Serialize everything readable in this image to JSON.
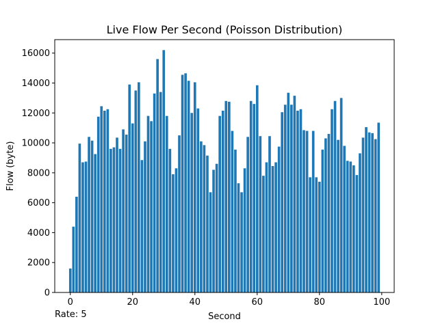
{
  "chart_data": {
    "type": "bar",
    "title": "Live Flow Per Second (Poisson Distribution)",
    "xlabel": "Second",
    "ylabel": "Flow (byte)",
    "xlim": [
      -5,
      104
    ],
    "ylim": [
      0,
      16900
    ],
    "xticks": [
      0,
      20,
      40,
      60,
      80,
      100
    ],
    "yticks": [
      0,
      2000,
      4000,
      6000,
      8000,
      10000,
      12000,
      14000,
      16000
    ],
    "grid": false,
    "bar_color": "#1f77b4",
    "x": [
      0,
      1,
      2,
      3,
      4,
      5,
      6,
      7,
      8,
      9,
      10,
      11,
      12,
      13,
      14,
      15,
      16,
      17,
      18,
      19,
      20,
      21,
      22,
      23,
      24,
      25,
      26,
      27,
      28,
      29,
      30,
      31,
      32,
      33,
      34,
      35,
      36,
      37,
      38,
      39,
      40,
      41,
      42,
      43,
      44,
      45,
      46,
      47,
      48,
      49,
      50,
      51,
      52,
      53,
      54,
      55,
      56,
      57,
      58,
      59,
      60,
      61,
      62,
      63,
      64,
      65,
      66,
      67,
      68,
      69,
      70,
      71,
      72,
      73,
      74,
      75,
      76,
      77,
      78,
      79,
      80,
      81,
      82,
      83,
      84,
      85,
      86,
      87,
      88,
      89,
      90,
      91,
      92,
      93,
      94,
      95,
      96,
      97,
      98,
      99
    ],
    "values": [
      1600,
      4400,
      6400,
      9950,
      8700,
      8750,
      10400,
      10150,
      9250,
      11750,
      12450,
      12150,
      12250,
      9600,
      9700,
      10350,
      9600,
      10900,
      10550,
      13900,
      11300,
      13500,
      14050,
      8850,
      10100,
      11800,
      11450,
      13300,
      15600,
      13400,
      16200,
      11800,
      9600,
      7900,
      8300,
      10500,
      14550,
      14650,
      14150,
      12000,
      14050,
      12300,
      10100,
      9850,
      9150,
      6700,
      8200,
      8600,
      11800,
      12150,
      12800,
      12750,
      10800,
      9550,
      7300,
      6700,
      8300,
      10400,
      12800,
      12600,
      13850,
      10450,
      7800,
      8700,
      10450,
      8450,
      8700,
      9750,
      12050,
      12550,
      13350,
      12550,
      13150,
      12150,
      12250,
      10850,
      10800,
      7700,
      10800,
      7700,
      7400,
      9550,
      10300,
      10600,
      12250,
      12800,
      10200,
      13000,
      9800,
      8800,
      8750,
      8500,
      7850,
      9300,
      10350,
      11050,
      10700,
      10650,
      10250,
      11350
    ]
  },
  "footer": {
    "rate_label": "Rate: 5"
  }
}
